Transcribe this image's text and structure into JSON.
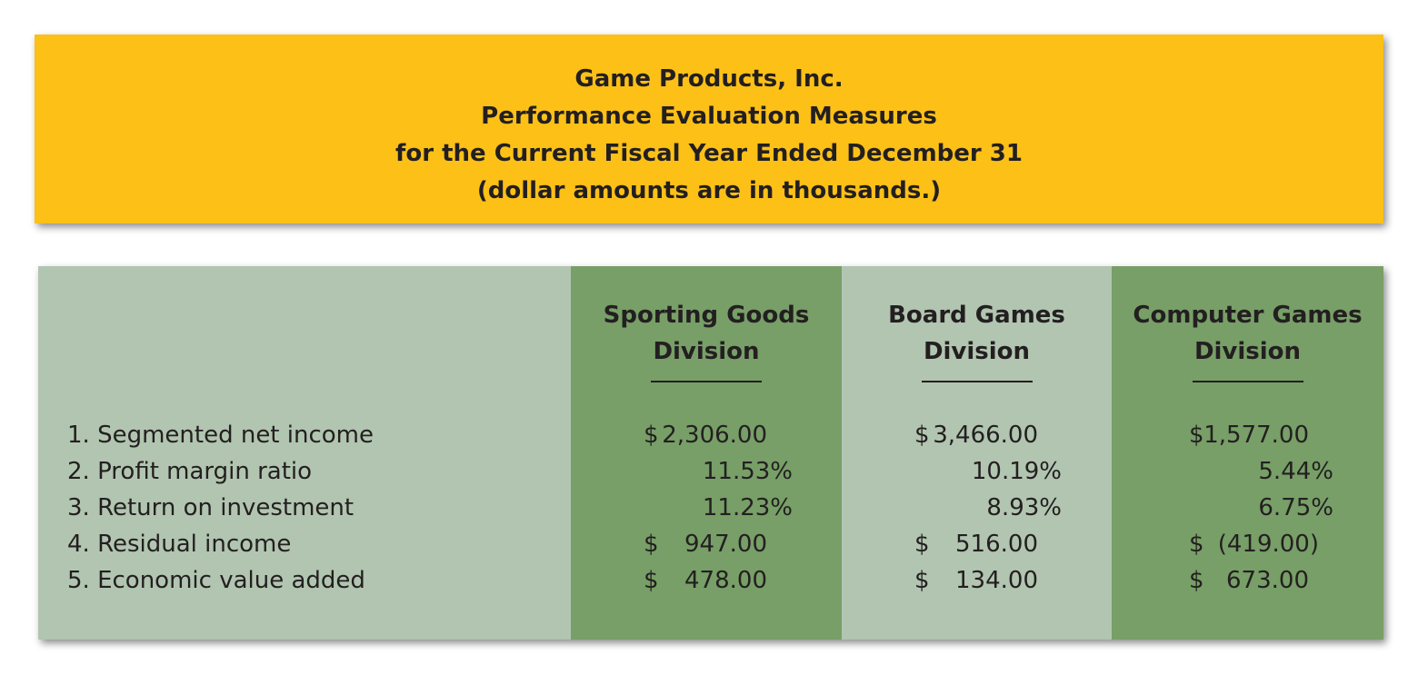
{
  "title": {
    "company": "Game Products, Inc.",
    "report": "Performance Evaluation Measures",
    "period": "for the Current Fiscal Year Ended December 31",
    "note": "(dollar amounts are in thousands.)"
  },
  "columns": [
    {
      "line1": "Sporting Goods",
      "line2": "Division"
    },
    {
      "line1": "Board Games",
      "line2": "Division"
    },
    {
      "line1": "Computer Games",
      "line2": "Division"
    }
  ],
  "rows": [
    {
      "label": "1.  Segmented net income",
      "cells": [
        {
          "sym": "$",
          "amt": "2,306.00"
        },
        {
          "sym": "$",
          "amt": "3,466.00"
        },
        {
          "sym": "$",
          "amt": "1,577.00"
        }
      ]
    },
    {
      "label": "2.  Profit margin ratio",
      "cells": [
        {
          "sym": "",
          "amt": "11.53%"
        },
        {
          "sym": "",
          "amt": "10.19%"
        },
        {
          "sym": "",
          "amt": "5.44%"
        }
      ]
    },
    {
      "label": "3.  Return on investment",
      "cells": [
        {
          "sym": "",
          "amt": "11.23%"
        },
        {
          "sym": "",
          "amt": "8.93%"
        },
        {
          "sym": "",
          "amt": "6.75%"
        }
      ]
    },
    {
      "label": "4.  Residual income",
      "cells": [
        {
          "sym": "$",
          "amt": "947.00"
        },
        {
          "sym": "$",
          "amt": "516.00"
        },
        {
          "sym": "$",
          "amt": "(419.00)"
        }
      ]
    },
    {
      "label": "5.  Economic value added",
      "cells": [
        {
          "sym": "$",
          "amt": "478.00"
        },
        {
          "sym": "$",
          "amt": "134.00"
        },
        {
          "sym": "$",
          "amt": "673.00"
        }
      ]
    }
  ],
  "colors": {
    "banner": "#fcc017",
    "panel": "#b1c5b0",
    "accent_column": "#779f67",
    "text": "#231f20"
  }
}
